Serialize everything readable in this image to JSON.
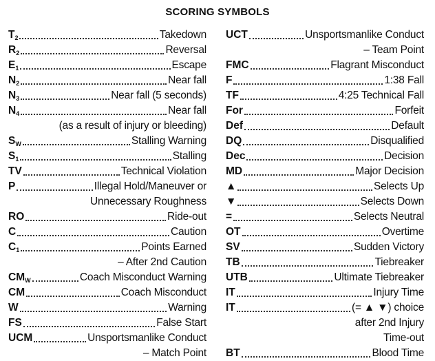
{
  "title": "SCORING SYMBOLS",
  "left": [
    {
      "code": "T",
      "sub": "2",
      "desc": "Takedown"
    },
    {
      "code": "R",
      "sub": "2",
      "desc": "Reversal"
    },
    {
      "code": "E",
      "sub": "1",
      "desc": "Escape"
    },
    {
      "code": "N",
      "sub": "2",
      "desc": "Near fall"
    },
    {
      "code": "N",
      "sub": "3",
      "desc": "Near fall (5 seconds)"
    },
    {
      "code": "N",
      "sub": "4",
      "desc": "Near fall"
    },
    {
      "cont": "(as a result of injury or bleeding)"
    },
    {
      "code": "S",
      "sub": "W",
      "desc": "Stalling Warning"
    },
    {
      "code": "S",
      "sub": "1",
      "desc": "Stalling"
    },
    {
      "code": "TV",
      "sub": "",
      "desc": "Technical Violation"
    },
    {
      "code": "P",
      "sub": "",
      "desc": "Illegal Hold/Maneuver or"
    },
    {
      "cont": "Unnecessary Roughness"
    },
    {
      "code": "RO",
      "sub": "",
      "desc": "Ride-out"
    },
    {
      "code": "C",
      "sub": "",
      "desc": "Caution"
    },
    {
      "code": "C",
      "sub": "1",
      "desc": "Points Earned"
    },
    {
      "cont": "– After 2nd Caution"
    },
    {
      "code": "CM",
      "sub": "W",
      "desc": "Coach Misconduct Warning"
    },
    {
      "code": "CM",
      "sub": "",
      "desc": "Coach Misconduct"
    },
    {
      "code": "W",
      "sub": "",
      "desc": "Warning"
    },
    {
      "code": "FS",
      "sub": "",
      "desc": "False Start"
    },
    {
      "code": "UCM",
      "sub": "",
      "desc": "Unsportsmanlike Conduct"
    },
    {
      "cont": "– Match Point"
    }
  ],
  "right": [
    {
      "code": "UCT",
      "sub": "",
      "desc": "Unsportsmanlike Conduct"
    },
    {
      "cont": "– Team Point"
    },
    {
      "code": "FMC",
      "sub": "",
      "desc": "Flagrant Misconduct"
    },
    {
      "code": "F",
      "sub": "",
      "desc": "1:38 Fall"
    },
    {
      "code": "TF",
      "sub": "",
      "desc": "4:25 Technical Fall"
    },
    {
      "code": "For",
      "sub": "",
      "desc": "Forfeit"
    },
    {
      "code": "Def",
      "sub": "",
      "desc": "Default"
    },
    {
      "code": "DQ",
      "sub": "",
      "desc": "Disqualified"
    },
    {
      "code": "Dec",
      "sub": "",
      "desc": "Decision"
    },
    {
      "code": "MD",
      "sub": "",
      "desc": "Major Decision"
    },
    {
      "code": "▲",
      "sub": "",
      "desc": "Selects Up"
    },
    {
      "code": "▼",
      "sub": "",
      "desc": "Selects Down"
    },
    {
      "code": "=",
      "sub": "",
      "desc": "Selects Neutral"
    },
    {
      "code": "OT",
      "sub": "",
      "desc": "Overtime"
    },
    {
      "code": "SV",
      "sub": "",
      "desc": "Sudden Victory"
    },
    {
      "code": "TB",
      "sub": "",
      "desc": "Tiebreaker"
    },
    {
      "code": "UTB",
      "sub": "",
      "desc": "Ultimate Tiebreaker"
    },
    {
      "code": "IT",
      "sub": "",
      "desc": "Injury Time"
    },
    {
      "code": "IT",
      "sub": "",
      "desc": "(= ▲ ▼) choice"
    },
    {
      "cont": "after 2nd Injury"
    },
    {
      "cont": "Time-out"
    },
    {
      "code": "BT",
      "sub": "",
      "desc": "Blood Time"
    }
  ]
}
